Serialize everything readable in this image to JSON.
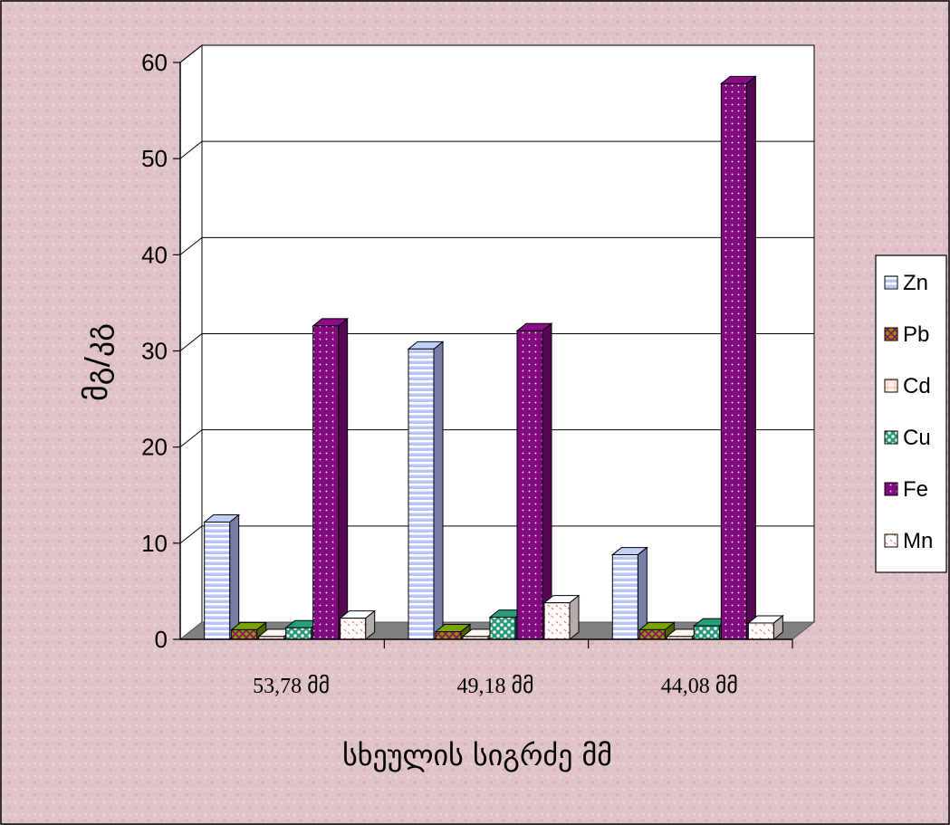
{
  "chart_data": {
    "type": "bar",
    "style": "3d-clustered-column",
    "categories": [
      "53,78  მმ",
      "49,18  მმ",
      "44,08  მმ"
    ],
    "series": [
      {
        "name": "Zn",
        "values": [
          12.2,
          30.2,
          8.8
        ]
      },
      {
        "name": "Pb",
        "values": [
          1.0,
          0.8,
          1.0
        ]
      },
      {
        "name": "Cd",
        "values": [
          0.3,
          0.3,
          0.3
        ]
      },
      {
        "name": "Cu",
        "values": [
          1.2,
          2.3,
          1.4
        ]
      },
      {
        "name": "Fe",
        "values": [
          32.6,
          32.1,
          57.8
        ]
      },
      {
        "name": "Mn",
        "values": [
          2.2,
          3.8,
          1.7
        ]
      }
    ],
    "title": "",
    "xlabel": "სხეულის სიგრძე მმ",
    "ylabel": "მგ/კგ",
    "ylim": [
      0,
      60
    ],
    "yticks": [
      0,
      10,
      20,
      30,
      40,
      50,
      60
    ],
    "grid": true,
    "legend_position": "right"
  },
  "colors": {
    "background": "#dfc3c6",
    "plot_back_wall": "#ffffff",
    "floor": "#808080",
    "Zn": "#a8b4f0",
    "Pb": "#6b8e00",
    "Cd": "#ffd8d2",
    "Cu": "#1e8a6c",
    "Fe": "#7a0a78",
    "Mn": "#fff5f0"
  }
}
